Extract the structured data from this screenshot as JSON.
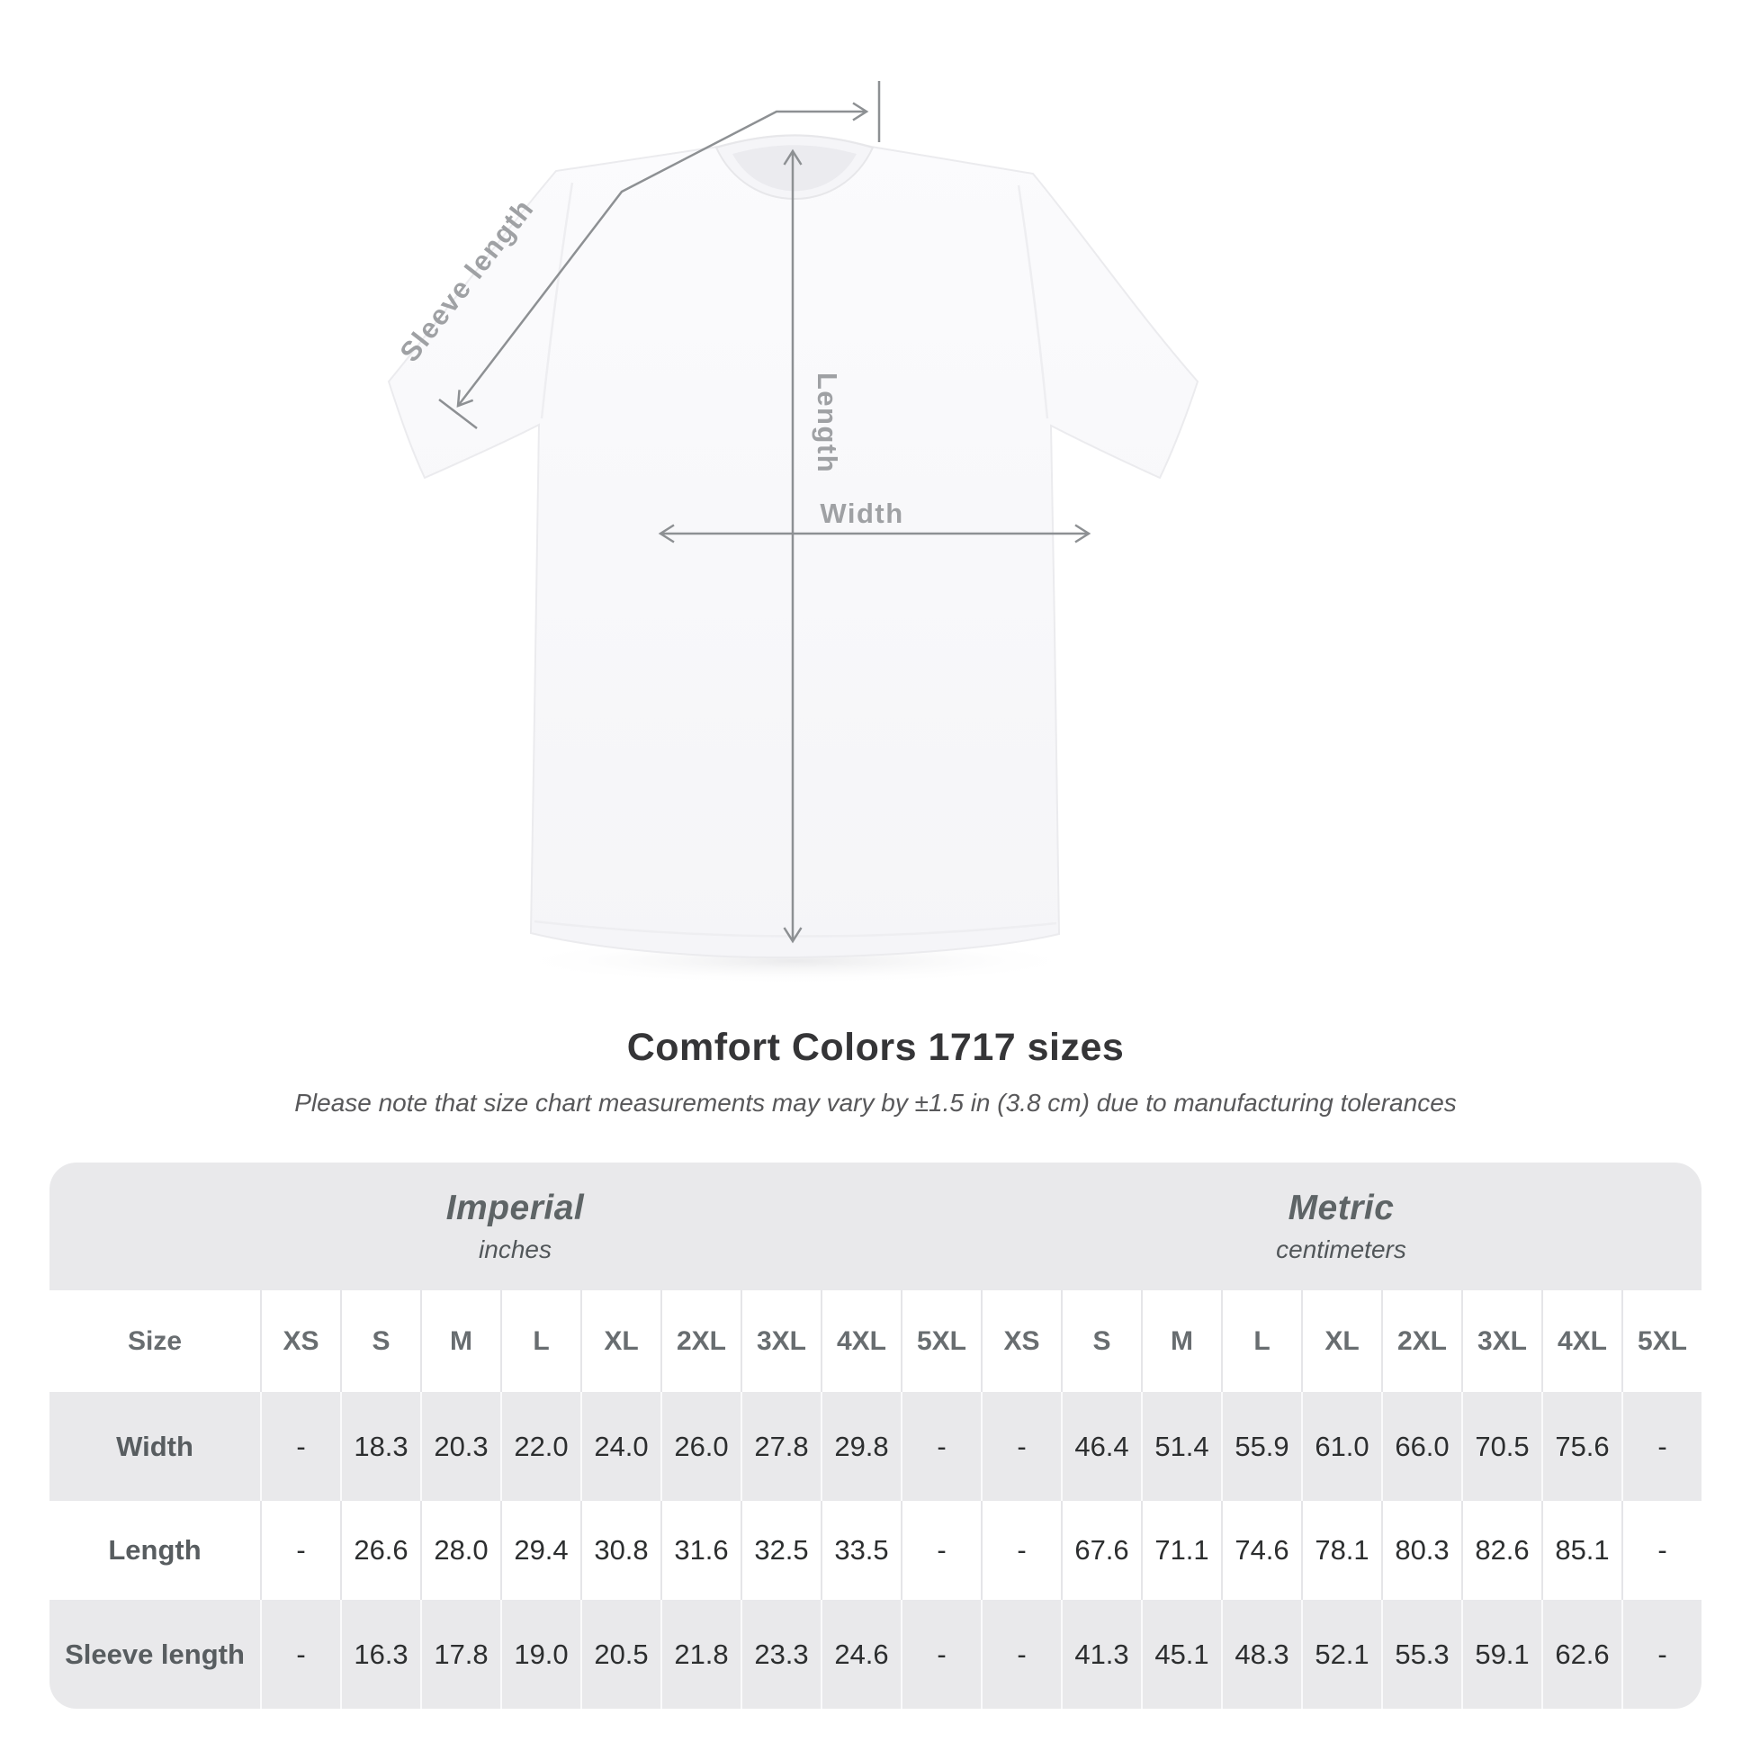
{
  "diagram": {
    "labels": {
      "sleeve_length": "Sleeve length",
      "length": "Length",
      "width": "Width"
    }
  },
  "chart_data": {
    "type": "table",
    "title": "Comfort Colors 1717 sizes",
    "note": "Please note that size chart measurements may vary by ±1.5 in (3.8 cm) due to manufacturing tolerances",
    "unit_groups": [
      {
        "label": "Imperial",
        "unit": "inches"
      },
      {
        "label": "Metric",
        "unit": "centimeters"
      }
    ],
    "size_header": "Size",
    "sizes": [
      "XS",
      "S",
      "M",
      "L",
      "XL",
      "2XL",
      "3XL",
      "4XL",
      "5XL"
    ],
    "measurements": [
      {
        "label": "Width",
        "imperial": [
          "-",
          "18.3",
          "20.3",
          "22.0",
          "24.0",
          "26.0",
          "27.8",
          "29.8",
          "-"
        ],
        "metric": [
          "-",
          "46.4",
          "51.4",
          "55.9",
          "61.0",
          "66.0",
          "70.5",
          "75.6",
          "-"
        ]
      },
      {
        "label": "Length",
        "imperial": [
          "-",
          "26.6",
          "28.0",
          "29.4",
          "30.8",
          "31.6",
          "32.5",
          "33.5",
          "-"
        ],
        "metric": [
          "-",
          "67.6",
          "71.1",
          "74.6",
          "78.1",
          "80.3",
          "82.6",
          "85.1",
          "-"
        ]
      },
      {
        "label": "Sleeve length",
        "imperial": [
          "-",
          "16.3",
          "17.8",
          "19.0",
          "20.5",
          "21.8",
          "23.3",
          "24.6",
          "-"
        ],
        "metric": [
          "-",
          "41.3",
          "45.1",
          "48.3",
          "52.1",
          "55.3",
          "59.1",
          "62.6",
          "-"
        ]
      }
    ]
  },
  "colors": {
    "table_band_gray": "#e9e9eb",
    "dimension_line_gray": "#8d9093",
    "diagram_label_gray": "#9fa1a4",
    "value_text": "#2c2e2f",
    "title_text": "#353537"
  }
}
